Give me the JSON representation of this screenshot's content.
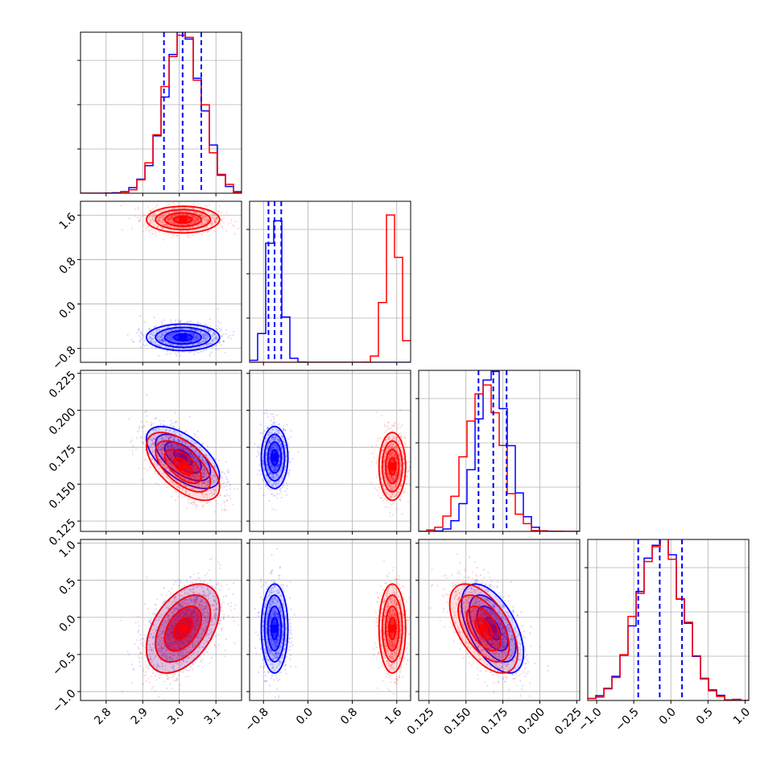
{
  "chart_data": {
    "type": "corner",
    "grid": true,
    "series_colors": [
      "#0000ff",
      "#ff0000"
    ],
    "quantile_lines_color": "#0000ff",
    "params": [
      {
        "range": [
          2.73,
          3.17
        ],
        "ticks": [
          2.8,
          2.9,
          3.0,
          3.1
        ],
        "tick_labels": [
          "2.8",
          "2.9",
          "3.0",
          "3.1"
        ],
        "quantiles": [
          2.958,
          3.009,
          3.06
        ],
        "blue": {
          "mean": 3.01,
          "sd": 0.05
        },
        "red": {
          "mean": 3.01,
          "sd": 0.05
        }
      },
      {
        "range": [
          -1.05,
          1.85
        ],
        "ticks": [
          -0.8,
          0.0,
          0.8,
          1.6
        ],
        "tick_labels": [
          "−0.8",
          "0.0",
          "0.8",
          "1.6"
        ],
        "quantiles": [
          -0.71,
          -0.6,
          -0.48
        ],
        "blue": {
          "mean": -0.6,
          "sd": 0.12
        },
        "red": {
          "mean": 1.52,
          "sd": 0.12
        }
      },
      {
        "range": [
          0.118,
          0.227
        ],
        "ticks": [
          0.125,
          0.15,
          0.175,
          0.2,
          0.225
        ],
        "tick_labels": [
          "0.125",
          "0.150",
          "0.175",
          "0.200",
          "0.225"
        ],
        "quantiles": [
          0.1585,
          0.1685,
          0.1775
        ],
        "blue": {
          "mean": 0.168,
          "sd": 0.0105
        },
        "red": {
          "mean": 0.162,
          "sd": 0.0115
        }
      },
      {
        "range": [
          -1.12,
          1.05
        ],
        "ticks": [
          -1.0,
          -0.5,
          0.0,
          0.5,
          1.0
        ],
        "tick_labels": [
          "−1.0",
          "−0.5",
          "0.0",
          "0.5",
          "1.0"
        ],
        "quantiles": [
          -0.44,
          -0.15,
          0.15
        ],
        "blue": {
          "mean": -0.15,
          "sd": 0.3
        },
        "red": {
          "mean": -0.15,
          "sd": 0.3
        }
      }
    ],
    "correlations": {
      "0-2": {
        "blue": -0.6,
        "red": -0.6
      },
      "0-3": {
        "blue": 0.45,
        "red": 0.45
      },
      "1-2": {
        "blue": 0.0,
        "red": 0.0
      },
      "1-3": {
        "blue": 0.0,
        "red": 0.0
      },
      "2-3": {
        "blue": -0.55,
        "red": -0.55
      }
    }
  }
}
